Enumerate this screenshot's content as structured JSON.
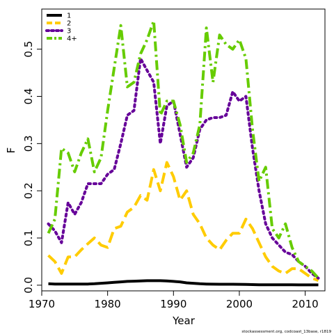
{
  "chart_data": {
    "type": "line",
    "title": "",
    "xlabel": "Year",
    "ylabel": "F",
    "xlim": [
      1970,
      2013
    ],
    "ylim": [
      -0.012,
      0.585
    ],
    "x_ticks": [
      "1970",
      "1980",
      "1990",
      "2000",
      "2010"
    ],
    "y_ticks": [
      "0.0",
      "0.1",
      "0.2",
      "0.3",
      "0.4",
      "0.5"
    ],
    "legend_position": "top-left",
    "credit": "stockassessment.org, codcoast_13base, r1819",
    "x": [
      1971,
      1972,
      1973,
      1974,
      1975,
      1976,
      1977,
      1978,
      1979,
      1980,
      1981,
      1982,
      1983,
      1984,
      1985,
      1986,
      1987,
      1988,
      1989,
      1990,
      1991,
      1992,
      1993,
      1994,
      1995,
      1996,
      1997,
      1998,
      1999,
      2000,
      2001,
      2002,
      2003,
      2004,
      2005,
      2006,
      2007,
      2008,
      2009,
      2010,
      2011,
      2012
    ],
    "series": [
      {
        "name": "1",
        "color": "#000000",
        "dash": "solid",
        "values": [
          0.003,
          0.0025,
          0.0025,
          0.0025,
          0.0025,
          0.0025,
          0.0025,
          0.003,
          0.004,
          0.005,
          0.006,
          0.007,
          0.008,
          0.0085,
          0.009,
          0.0095,
          0.0095,
          0.0095,
          0.009,
          0.008,
          0.007,
          0.005,
          0.004,
          0.003,
          0.0025,
          0.0022,
          0.002,
          0.002,
          0.002,
          0.0018,
          0.0015,
          0.0012,
          0.001,
          0.0009,
          0.0008,
          0.0008,
          0.0008,
          0.0008,
          0.0007,
          0.0007,
          0.0007,
          0.0007
        ]
      },
      {
        "name": "2",
        "color": "#ffcc00",
        "dash": "long",
        "values": [
          0.063,
          0.05,
          0.025,
          0.06,
          0.06,
          0.075,
          0.088,
          0.1,
          0.085,
          0.08,
          0.12,
          0.125,
          0.155,
          0.165,
          0.19,
          0.18,
          0.245,
          0.2,
          0.26,
          0.23,
          0.18,
          0.2,
          0.15,
          0.13,
          0.1,
          0.085,
          0.075,
          0.095,
          0.11,
          0.11,
          0.14,
          0.12,
          0.09,
          0.06,
          0.04,
          0.03,
          0.025,
          0.035,
          0.035,
          0.025,
          0.015,
          0.01
        ]
      },
      {
        "name": "3",
        "color": "#660099",
        "dash": "dot",
        "values": [
          0.13,
          0.115,
          0.09,
          0.175,
          0.15,
          0.175,
          0.215,
          0.215,
          0.215,
          0.235,
          0.245,
          0.3,
          0.36,
          0.37,
          0.48,
          0.455,
          0.43,
          0.3,
          0.38,
          0.39,
          0.32,
          0.25,
          0.27,
          0.33,
          0.35,
          0.355,
          0.355,
          0.36,
          0.41,
          0.39,
          0.4,
          0.29,
          0.2,
          0.13,
          0.1,
          0.085,
          0.07,
          0.065,
          0.05,
          0.04,
          0.025,
          0.015
        ]
      },
      {
        "name": "4+",
        "color": "#66cc00",
        "dash": "dashdot",
        "values": [
          0.11,
          0.14,
          0.29,
          0.28,
          0.24,
          0.28,
          0.31,
          0.24,
          0.27,
          0.37,
          0.46,
          0.55,
          0.42,
          0.43,
          0.49,
          0.52,
          0.56,
          0.36,
          0.39,
          0.39,
          0.34,
          0.26,
          0.28,
          0.34,
          0.545,
          0.43,
          0.53,
          0.51,
          0.5,
          0.52,
          0.48,
          0.33,
          0.22,
          0.25,
          0.12,
          0.1,
          0.13,
          0.08,
          0.05,
          0.04,
          0.03,
          0.015
        ]
      }
    ]
  }
}
